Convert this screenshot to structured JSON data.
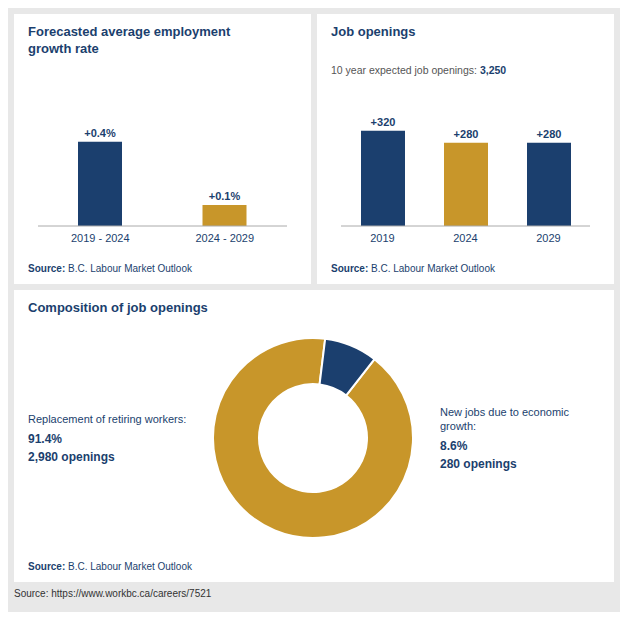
{
  "chart_data": [
    {
      "type": "bar",
      "title": "Forecasted average employment\ngrowth rate",
      "categories": [
        "2019 - 2024",
        "2024 - 2029"
      ],
      "values": [
        0.4,
        0.1
      ],
      "value_labels": [
        "+0.4%",
        "+0.1%"
      ],
      "colors": [
        "#1b3f6e",
        "#c8962a"
      ],
      "ylim": [
        0,
        0.58
      ],
      "data_labels": true,
      "tick_labels": "x",
      "grid": false,
      "annotations": [
        "Source:",
        "B.C. Labour Market Outlook"
      ]
    },
    {
      "type": "bar",
      "title": "Job openings",
      "subtitle": [
        "10 year expected job openings:",
        "3,250"
      ],
      "categories": [
        "2019",
        "2024",
        "2029"
      ],
      "values": [
        320,
        280,
        280
      ],
      "value_labels": [
        "+320",
        "+280",
        "+280"
      ],
      "colors": [
        "#1b3f6e",
        "#c8962a",
        "#1b3f6e"
      ],
      "ylim": [
        0,
        410
      ],
      "data_labels": true,
      "tick_labels": "x",
      "grid": false,
      "annotations": [
        "Source:",
        "B.C. Labour Market Outlook"
      ]
    },
    {
      "type": "pie",
      "title": "Composition of job openings",
      "categories": [
        "Replacement of retiring workers:",
        "New jobs due to economic\ngrowth:"
      ],
      "values": [
        91.4,
        8.6
      ],
      "value_labels": [
        "91.4%",
        "8.6%"
      ],
      "colors": [
        "#c8962a",
        "#1b3f6e"
      ],
      "data_labels": true,
      "annotations": [
        "2,980 openings",
        "280 openings",
        "Source:",
        "B.C. Labour Market Outlook"
      ]
    }
  ],
  "annotation": "Source: https://www.workbc.ca/careers/7521"
}
